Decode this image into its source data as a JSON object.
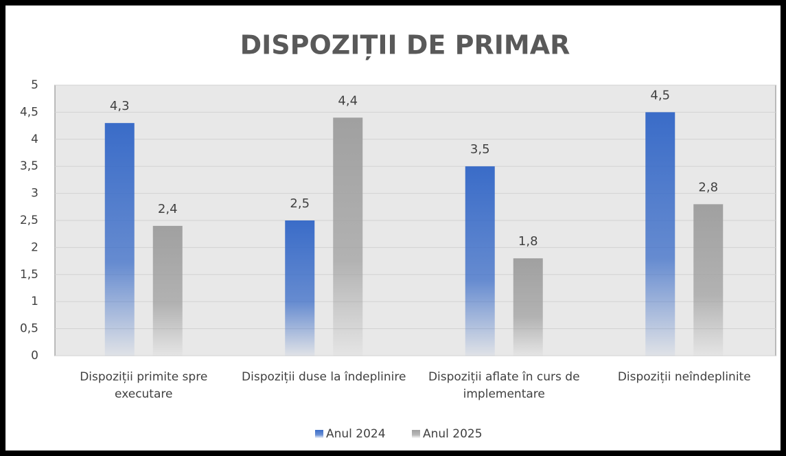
{
  "chart_data": {
    "type": "bar",
    "title": "DISPOZIȚII DE PRIMAR",
    "categories": [
      "Dispoziții primite spre executare",
      "Dispoziții duse la îndeplinire",
      "Dispoziții aflate în curs de implementare",
      "Dispoziții neîndeplinite"
    ],
    "series": [
      {
        "name": "Anul 2024",
        "color": "#3a6cc8",
        "values": [
          4.3,
          2.5,
          3.5,
          4.5
        ],
        "value_labels": [
          "4,3",
          "2,5",
          "3,5",
          "4,5"
        ]
      },
      {
        "name": "Anul 2025",
        "color": "#a0a0a0",
        "values": [
          2.4,
          4.4,
          1.8,
          2.8
        ],
        "value_labels": [
          "2,4",
          "4,4",
          "1,8",
          "2,8"
        ]
      }
    ],
    "ylim": [
      0,
      5
    ],
    "yticks": [
      0,
      {
        "value": 0.5,
        "label": "0,5"
      },
      1,
      {
        "value": 1.5,
        "label": "1,5"
      },
      2,
      {
        "value": 2.5,
        "label": "2,5"
      },
      3,
      {
        "value": 3.5,
        "label": "3,5"
      },
      4,
      {
        "value": 4.5,
        "label": "4,5"
      },
      5
    ],
    "grid": true,
    "legend": "bottom"
  }
}
